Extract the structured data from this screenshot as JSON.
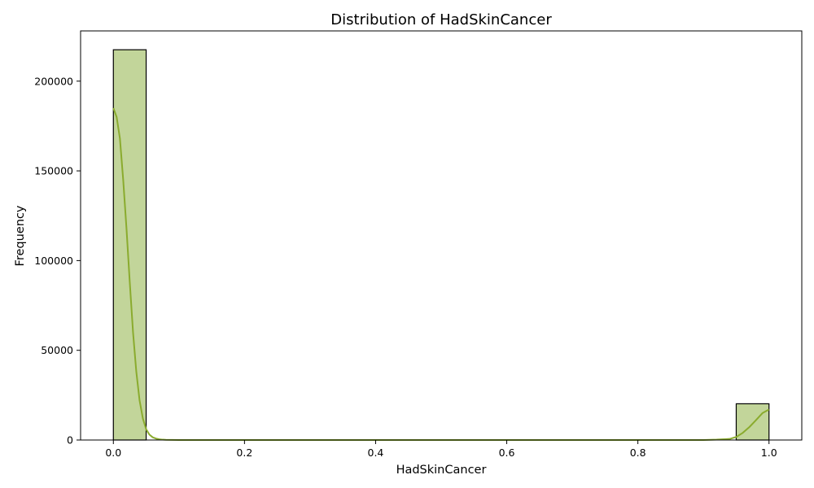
{
  "chart_data": {
    "type": "bar",
    "title": "Distribution of HadSkinCancer",
    "xlabel": "HadSkinCancer",
    "ylabel": "Frequency",
    "xlim": [
      -0.05,
      1.05
    ],
    "ylim": [
      0,
      228000
    ],
    "x_ticks": [
      0.0,
      0.2,
      0.4,
      0.6,
      0.8,
      1.0
    ],
    "x_tick_labels": [
      "0.0",
      "0.2",
      "0.4",
      "0.6",
      "0.8",
      "1.0"
    ],
    "y_ticks": [
      0,
      50000,
      100000,
      150000,
      200000
    ],
    "y_tick_labels": [
      "0",
      "50000",
      "100000",
      "150000",
      "200000"
    ],
    "bins": [
      {
        "x0": 0.0,
        "x1": 0.05,
        "count": 217500
      },
      {
        "x0": 0.95,
        "x1": 1.0,
        "count": 20200
      }
    ],
    "kde": {
      "x": [
        0.0,
        0.005,
        0.01,
        0.015,
        0.02,
        0.025,
        0.03,
        0.035,
        0.04,
        0.045,
        0.05,
        0.055,
        0.06,
        0.065,
        0.07,
        0.075,
        0.08,
        0.09,
        0.1,
        0.12,
        0.15,
        0.2,
        0.4,
        0.6,
        0.8,
        0.9,
        0.92,
        0.94,
        0.95,
        0.96,
        0.97,
        0.98,
        0.99,
        1.0
      ],
      "y": [
        185000,
        180000,
        168000,
        145000,
        118000,
        88000,
        60000,
        38000,
        22000,
        12000,
        6000,
        3000,
        1500,
        800,
        400,
        200,
        100,
        30,
        10,
        0,
        0,
        0,
        0,
        0,
        0,
        0,
        200,
        600,
        1700,
        4000,
        7200,
        11000,
        15000,
        17000
      ]
    },
    "grid": false,
    "bar_fill": "#c2d59a",
    "bar_edge": "#000000",
    "kde_color": "#8aab2e"
  }
}
